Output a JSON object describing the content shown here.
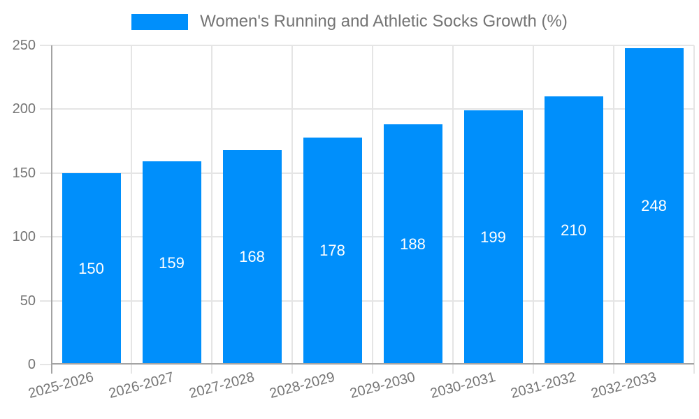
{
  "legend": {
    "label": "Women's Running and Athletic Socks Growth (%)"
  },
  "chart_data": {
    "type": "bar",
    "title": "Women's Running and Athletic Socks Growth (%)",
    "categories": [
      "2025-2026",
      "2026-2027",
      "2027-2028",
      "2028-2029",
      "2029-2030",
      "2030-2031",
      "2031-2032",
      "2032-2033"
    ],
    "values": [
      150,
      159,
      168,
      178,
      188,
      199,
      210,
      248
    ],
    "xlabel": "",
    "ylabel": "",
    "ylim": [
      0,
      250
    ],
    "yticks": [
      0,
      50,
      100,
      150,
      200,
      250
    ],
    "grid": true,
    "legend_position": "top-center",
    "value_labels": "inside-center",
    "colors": {
      "bar": "#008FFB",
      "value_label": "#ffffff",
      "axis_text": "#757575",
      "gridline": "#e5e5e5",
      "axis_line": "#a3a3a3",
      "background": "#ffffff"
    }
  }
}
